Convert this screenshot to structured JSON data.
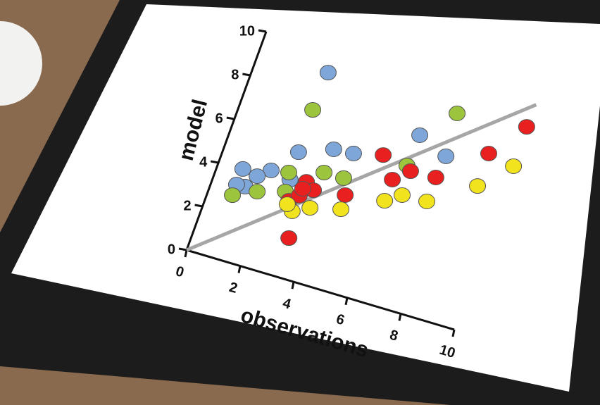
{
  "chart_data": {
    "type": "scatter",
    "x_label": "observations",
    "y_label": "model",
    "xlim": [
      0,
      10
    ],
    "ylim": [
      0,
      10
    ],
    "xticks": [
      0,
      2,
      4,
      6,
      8,
      10
    ],
    "yticks": [
      0,
      2,
      4,
      6,
      8,
      10
    ],
    "series": [
      {
        "color": "#7ea6d9",
        "x": [
          2.59,
          6.45,
          7.59,
          3.72,
          4.44,
          2.57,
          0.9,
          1.87,
          1.19,
          2.62,
          1.47,
          0.88
        ],
        "values": [
          9.07,
          7.61,
          7.06,
          5.97,
          6.04,
          5.42,
          4.04,
          4.33,
          3.34,
          4.18,
          3.92,
          3.32
        ]
      },
      {
        "color": "#9cc43c",
        "x": [
          2.53,
          7.44,
          6.39,
          3.68,
          4.41,
          2.49,
          0.87,
          1.66,
          2.61
        ],
        "values": [
          7.34,
          8.97,
          6.2,
          4.89,
          4.9,
          4.46,
          2.83,
          3.28,
          3.63
        ]
      },
      {
        "color": "#e8201f",
        "x": [
          9.95,
          9.0,
          5.46,
          6.58,
          7.51,
          6.07,
          4.67,
          3.3,
          3.2,
          3.54,
          2.84,
          3.13,
          3.16
        ],
        "values": [
          9.27,
          7.7,
          6.34,
          6.01,
          6.06,
          5.44,
          4.22,
          1.75,
          4.29,
          4.03,
          3.29,
          3.63,
          3.96
        ]
      },
      {
        "color": "#f1e31e",
        "x": [
          9.99,
          9.02,
          6.07,
          6.59,
          7.5,
          4.7,
          3.64,
          3.08,
          2.83
        ],
        "values": [
          7.48,
          6.22,
          4.47,
          4.92,
          4.96,
          3.58,
          3.26,
          2.9,
          3.13
        ]
      }
    ],
    "line": {
      "color": "#a6a6a6",
      "x": [
        0,
        10
      ],
      "values": [
        0,
        10.3
      ]
    }
  }
}
